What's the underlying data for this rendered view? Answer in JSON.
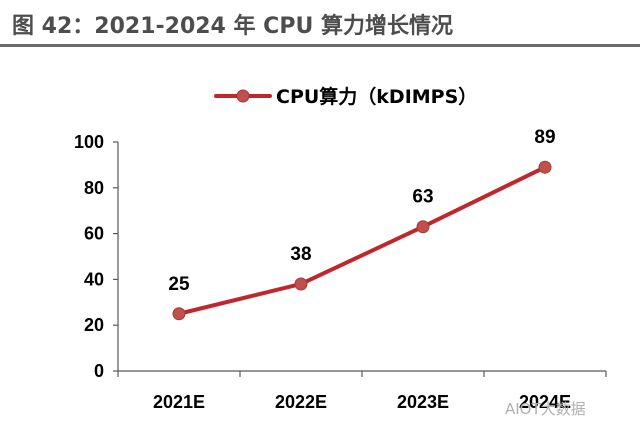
{
  "figure_title": "图 42：2021-2024 年 CPU 算力增长情况",
  "watermark": "AIOT大数据",
  "colors": {
    "line": "#c0272d",
    "marker": "#c0504d",
    "axis": "#595959",
    "title": "#4d4d4d"
  },
  "chart_data": {
    "type": "line",
    "categories": [
      "2021E",
      "2022E",
      "2023E",
      "2024E"
    ],
    "series": [
      {
        "name": "CPU算力（kDIMPS）",
        "values": [
          25,
          38,
          63,
          89
        ]
      }
    ],
    "ylim": [
      0,
      100
    ],
    "yticks": [
      0,
      20,
      40,
      60,
      80,
      100
    ],
    "data_labels": true,
    "legend": "top-center",
    "grid": false
  }
}
